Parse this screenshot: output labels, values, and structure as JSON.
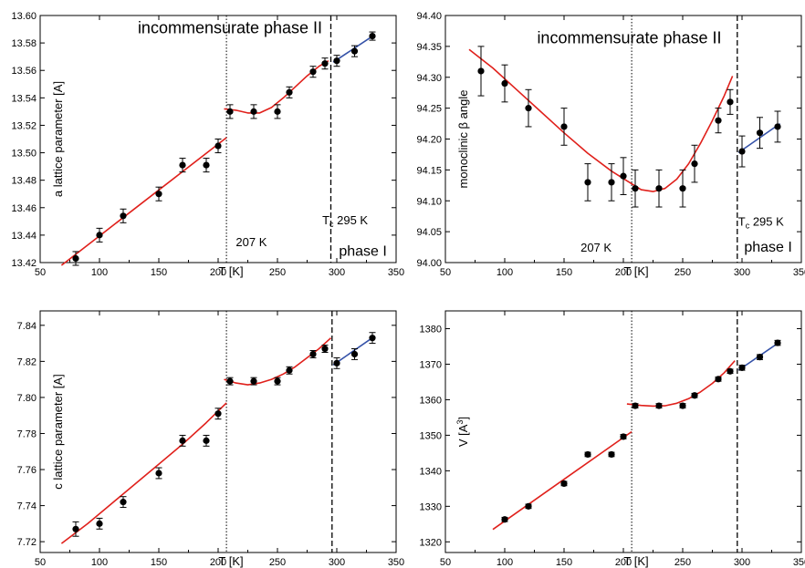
{
  "chart_data": [
    {
      "type": "scatter",
      "xlabel": "T [K]",
      "ylabel": "a lattice parameter [A]",
      "xlim": [
        50,
        350
      ],
      "ylim": [
        13.42,
        13.6
      ],
      "xticks": [
        "50",
        "100",
        "150",
        "200",
        "250",
        "300",
        "350"
      ],
      "yticks": [
        "13.42",
        "13.44",
        "13.46",
        "13.48",
        "13.50",
        "13.52",
        "13.54",
        "13.56",
        "13.58",
        "13.60"
      ],
      "points": {
        "x": [
          80,
          100,
          120,
          150,
          170,
          190,
          200,
          210,
          230,
          250,
          260,
          280,
          290,
          300,
          315,
          330
        ],
        "y": [
          13.423,
          13.44,
          13.454,
          13.47,
          13.491,
          13.491,
          13.505,
          13.53,
          13.53,
          13.53,
          13.544,
          13.559,
          13.565,
          13.567,
          13.574,
          13.585
        ],
        "err": [
          0.005,
          0.005,
          0.005,
          0.005,
          0.005,
          0.005,
          0.005,
          0.005,
          0.005,
          0.005,
          0.004,
          0.004,
          0.004,
          0.004,
          0.004,
          0.003
        ]
      },
      "fits": [
        {
          "color": "#e0201b",
          "x": [
            68,
            207
          ],
          "y": [
            13.418,
            13.511
          ]
        },
        {
          "color": "#e0201b",
          "x": [
            205,
            215,
            225,
            235,
            245,
            255,
            265,
            275,
            285,
            293
          ],
          "y": [
            13.532,
            13.531,
            13.529,
            13.529,
            13.533,
            13.54,
            13.548,
            13.556,
            13.563,
            13.567
          ]
        },
        {
          "color": "#3552a8",
          "x": [
            297,
            332
          ],
          "y": [
            13.566,
            13.586
          ]
        }
      ],
      "vlines": [
        {
          "x": 207,
          "style": "dotted"
        },
        {
          "x": 295,
          "style": "dashed"
        }
      ],
      "annotations": [
        {
          "text": "incommensurate phase II",
          "x": 210,
          "y": 13.587,
          "size": 18
        },
        {
          "text": "207 K",
          "x": 228,
          "y": 13.432,
          "size": 13
        },
        {
          "text": "phase I",
          "x": 322,
          "y": 13.425,
          "size": 16
        }
      ],
      "tc": {
        "main": "T",
        "sub": "c",
        "rest": " 295 K",
        "x": 307,
        "y": 13.448
      }
    },
    {
      "type": "scatter",
      "xlabel": "T [K]",
      "ylabel": "monoclinic β angle",
      "xlim": [
        50,
        350
      ],
      "ylim": [
        94.0,
        94.4
      ],
      "xticks": [
        "50",
        "100",
        "150",
        "200",
        "250",
        "300",
        "350"
      ],
      "yticks": [
        "94.00",
        "94.05",
        "94.10",
        "94.15",
        "94.20",
        "94.25",
        "94.30",
        "94.35",
        "94.40"
      ],
      "points": {
        "x": [
          80,
          100,
          120,
          150,
          170,
          190,
          200,
          210,
          230,
          250,
          260,
          280,
          290,
          300,
          315,
          330
        ],
        "y": [
          94.31,
          94.29,
          94.25,
          94.22,
          94.13,
          94.13,
          94.14,
          94.12,
          94.12,
          94.12,
          94.16,
          94.23,
          94.26,
          94.18,
          94.21,
          94.22
        ],
        "err": [
          0.04,
          0.03,
          0.03,
          0.03,
          0.03,
          0.03,
          0.03,
          0.03,
          0.03,
          0.03,
          0.03,
          0.02,
          0.02,
          0.025,
          0.025,
          0.025
        ]
      },
      "fits": [
        {
          "color": "#e0201b",
          "x": [
            70,
            90,
            110,
            130,
            150,
            170,
            190,
            205,
            215,
            225,
            235,
            245,
            255,
            265,
            275,
            285,
            292
          ],
          "y": [
            94.345,
            94.315,
            94.28,
            94.245,
            94.21,
            94.177,
            94.148,
            94.13,
            94.118,
            94.115,
            94.12,
            94.135,
            94.16,
            94.193,
            94.23,
            94.27,
            94.302
          ]
        },
        {
          "color": "#3552a8",
          "x": [
            297,
            332
          ],
          "y": [
            94.178,
            94.225
          ]
        }
      ],
      "vlines": [
        {
          "x": 207,
          "style": "dotted"
        },
        {
          "x": 296,
          "style": "dashed"
        }
      ],
      "annotations": [
        {
          "text": "incommensurate phase II",
          "x": 205,
          "y": 94.355,
          "size": 18
        },
        {
          "text": "207 K",
          "x": 177,
          "y": 94.018,
          "size": 13
        },
        {
          "text": "phase I",
          "x": 322,
          "y": 94.018,
          "size": 16
        }
      ],
      "tc": {
        "main": "T",
        "sub": "c",
        "rest": " 295 K",
        "x": 316,
        "y": 94.06
      }
    },
    {
      "type": "scatter",
      "xlabel": "T [K]",
      "ylabel": "c lattice parameter [A]",
      "xlim": [
        50,
        350
      ],
      "ylim": [
        7.714,
        7.848
      ],
      "xticks": [
        "50",
        "100",
        "150",
        "200",
        "250",
        "300",
        "350"
      ],
      "yticks": [
        "7.72",
        "7.74",
        "7.76",
        "7.78",
        "7.80",
        "7.82",
        "7.84"
      ],
      "points": {
        "x": [
          80,
          100,
          120,
          150,
          170,
          190,
          200,
          210,
          230,
          250,
          260,
          280,
          290,
          300,
          315,
          330
        ],
        "y": [
          7.727,
          7.73,
          7.742,
          7.758,
          7.776,
          7.776,
          7.791,
          7.809,
          7.809,
          7.809,
          7.815,
          7.824,
          7.827,
          7.819,
          7.824,
          7.833
        ],
        "err": [
          0.004,
          0.003,
          0.003,
          0.003,
          0.003,
          0.003,
          0.003,
          0.002,
          0.002,
          0.002,
          0.002,
          0.002,
          0.002,
          0.003,
          0.003,
          0.003
        ]
      },
      "fits": [
        {
          "color": "#e0201b",
          "x": [
            68,
            90,
            110,
            130,
            150,
            170,
            190,
            207
          ],
          "y": [
            7.719,
            7.73,
            7.741,
            7.752,
            7.763,
            7.774,
            7.786,
            7.797
          ]
        },
        {
          "color": "#e0201b",
          "x": [
            205,
            215,
            225,
            235,
            245,
            255,
            265,
            275,
            285,
            295
          ],
          "y": [
            7.81,
            7.808,
            7.807,
            7.808,
            7.81,
            7.813,
            7.817,
            7.822,
            7.827,
            7.833
          ]
        },
        {
          "color": "#3552a8",
          "x": [
            297,
            332
          ],
          "y": [
            7.818,
            7.834
          ]
        }
      ],
      "vlines": [
        {
          "x": 207,
          "style": "dotted"
        },
        {
          "x": 296,
          "style": "dashed"
        }
      ],
      "annotations": [],
      "tc": null
    },
    {
      "type": "scatter",
      "xlabel": "T [K]",
      "ylabel": "V [A",
      "ylabel_sup": "3",
      "ylabel_end": "]",
      "xlim": [
        50,
        350
      ],
      "ylim": [
        1317,
        1385
      ],
      "xticks": [
        "50",
        "100",
        "150",
        "200",
        "250",
        "300",
        "350"
      ],
      "yticks": [
        "1320",
        "1330",
        "1340",
        "1350",
        "1360",
        "1370",
        "1380"
      ],
      "points": {
        "x": [
          100,
          120,
          150,
          170,
          190,
          200,
          210,
          230,
          250,
          260,
          280,
          290,
          300,
          315,
          330
        ],
        "y": [
          1326.3,
          1330.0,
          1336.4,
          1344.6,
          1344.6,
          1349.6,
          1358.3,
          1358.3,
          1358.3,
          1361.2,
          1365.8,
          1368.0,
          1369.0,
          1372.0,
          1376.0
        ],
        "err": [
          0.6,
          0.6,
          0.6,
          0.6,
          0.6,
          0.6,
          0.6,
          0.6,
          0.6,
          0.6,
          0.6,
          0.6,
          0.7,
          0.7,
          0.7
        ]
      },
      "fits": [
        {
          "color": "#e0201b",
          "x": [
            90,
            207
          ],
          "y": [
            1323.5,
            1351.0
          ]
        },
        {
          "color": "#e0201b",
          "x": [
            203,
            215,
            225,
            235,
            245,
            255,
            265,
            275,
            285,
            294
          ],
          "y": [
            1358.8,
            1358.4,
            1358.2,
            1358.3,
            1359.0,
            1360.3,
            1362.2,
            1364.6,
            1367.6,
            1371.0
          ]
        },
        {
          "color": "#3552a8",
          "x": [
            297,
            332
          ],
          "y": [
            1368.3,
            1376.3
          ]
        }
      ],
      "vlines": [
        {
          "x": 207,
          "style": "dotted"
        },
        {
          "x": 296,
          "style": "dashed"
        }
      ],
      "annotations": [],
      "tc": null
    }
  ]
}
